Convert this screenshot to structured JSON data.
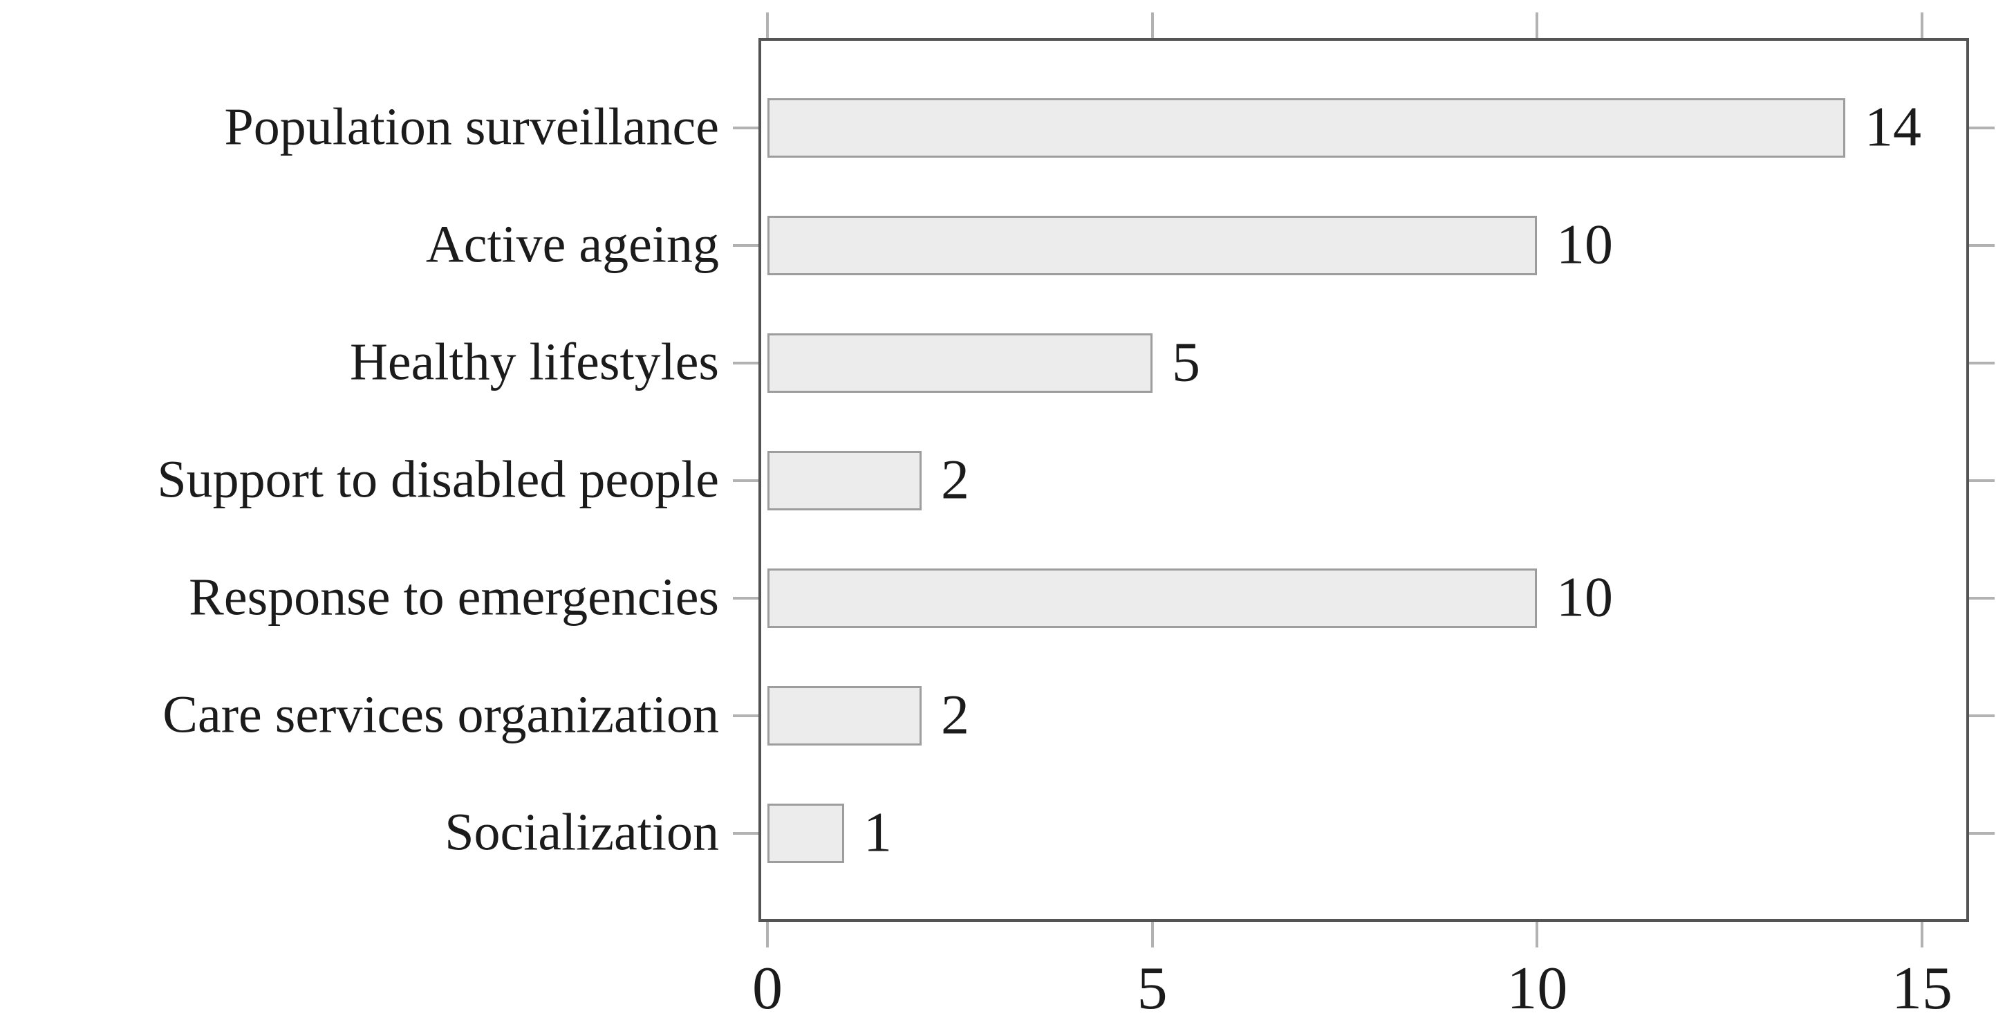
{
  "figure": {
    "background": "#ffffff",
    "text_color": "#1b1b1b"
  },
  "chart_data": {
    "type": "bar",
    "orientation": "horizontal",
    "title": "",
    "xlabel": "",
    "ylabel": "",
    "categories": [
      "Population surveillance",
      "Active ageing",
      "Healthy lifestyles",
      "Support to disabled people",
      "Response to emergencies",
      "Care services organization",
      "Socialization"
    ],
    "values": [
      14,
      10,
      5,
      2,
      10,
      2,
      1
    ],
    "value_labels": [
      "14",
      "10",
      "5",
      "2",
      "10",
      "2",
      "1"
    ],
    "xlim": [
      0,
      15
    ],
    "xticks": [
      0,
      5,
      10,
      15
    ],
    "xtick_labels": [
      "0",
      "5",
      "10",
      "15"
    ],
    "grid": false,
    "legend": null,
    "colors": {
      "bar_fill": "#ececec",
      "bar_border": "#9d9d9d",
      "axis_frame": "#545454",
      "tick_mark": "#b2b2b2",
      "label_text": "#1b1b1b"
    }
  }
}
